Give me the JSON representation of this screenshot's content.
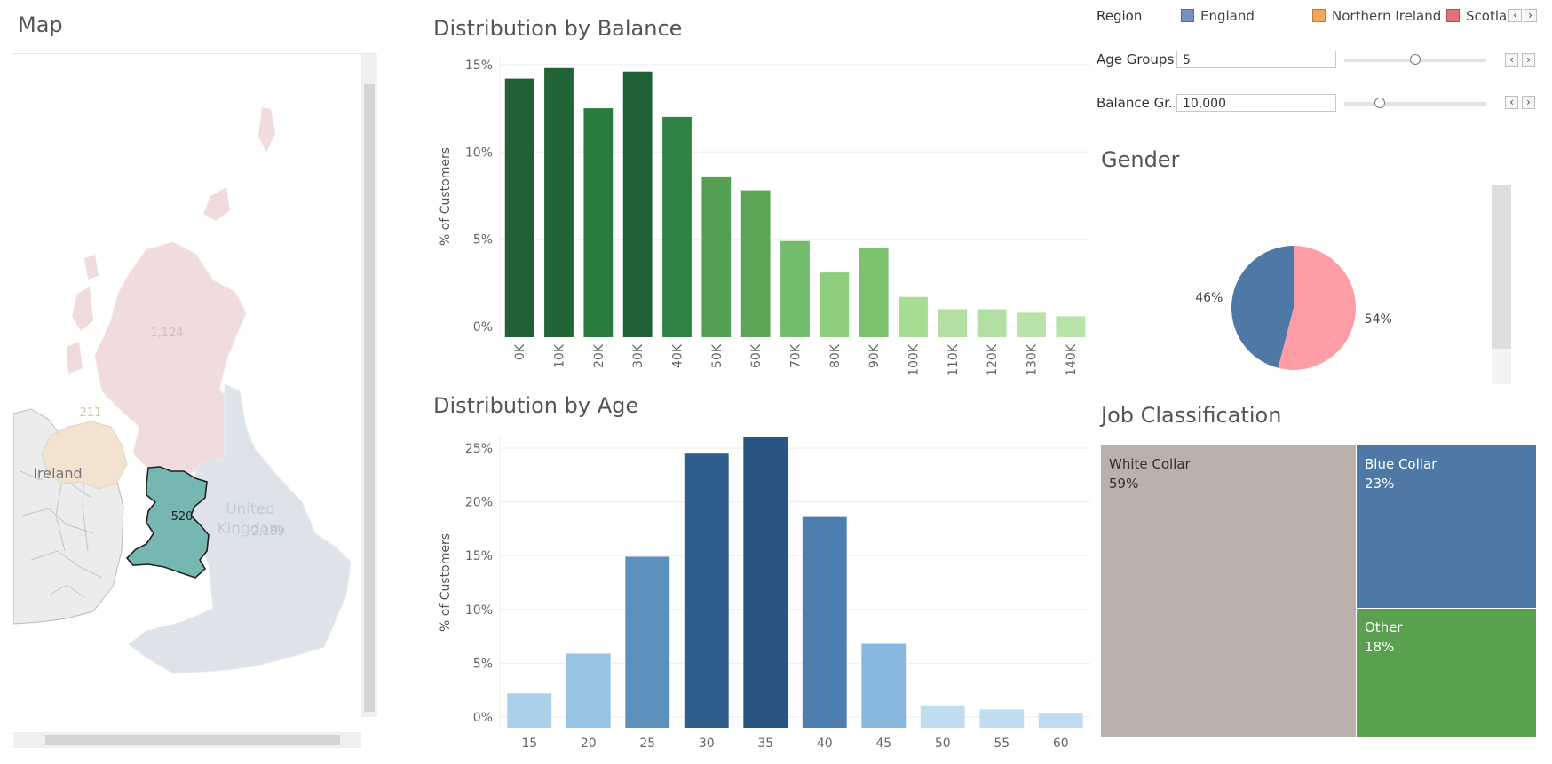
{
  "map": {
    "title": "Map",
    "labels": {
      "scotland": "1,124",
      "northern_ireland": "211",
      "wales": "520",
      "england": "2,189",
      "ireland": "Ireland",
      "united_kingdom_1": "United",
      "united_kingdom_2": "Kingdom"
    },
    "colors": {
      "scotland": "#f0dcdc",
      "northern_ireland": "#f1e3d0",
      "wales": "#76b7b2",
      "england": "#dde3e8",
      "ireland": "#ececec"
    }
  },
  "balance_chart": {
    "title": "Distribution by Balance",
    "chart_data": {
      "type": "bar",
      "title": "Distribution by Balance",
      "xlabel": "",
      "ylabel": "% of Customers",
      "categories": [
        "0K",
        "10K",
        "20K",
        "30K",
        "40K",
        "50K",
        "60K",
        "70K",
        "80K",
        "90K",
        "100K",
        "110K",
        "120K",
        "130K",
        "140K"
      ],
      "values": [
        14.2,
        14.8,
        12.5,
        14.6,
        12.0,
        8.6,
        7.8,
        4.9,
        3.1,
        4.5,
        1.7,
        1.0,
        1.0,
        0.8,
        0.6
      ],
      "ylim": [
        -0.6,
        15.5
      ],
      "yticks": [
        0,
        5,
        10,
        15
      ],
      "ytick_labels": [
        "0%",
        "5%",
        "10%",
        "15%"
      ],
      "grid": true,
      "colors": [
        "#215f37",
        "#226337",
        "#2b7d3e",
        "#216037",
        "#2f8443",
        "#53a052",
        "#5ca456",
        "#72bd6d",
        "#8dce7c",
        "#7cc26c",
        "#a6dc94",
        "#b2e0a2",
        "#b2e0a2",
        "#b8e3a9",
        "#b8e3a9"
      ]
    }
  },
  "age_chart": {
    "title": "Distribution by Age",
    "chart_data": {
      "type": "bar",
      "title": "Distribution by Age",
      "xlabel": "",
      "ylabel": "% of Customers",
      "categories": [
        "15",
        "20",
        "25",
        "30",
        "35",
        "40",
        "45",
        "50",
        "55",
        "60"
      ],
      "values": [
        2.2,
        5.9,
        14.9,
        24.5,
        26.0,
        18.6,
        6.8,
        1.0,
        0.7,
        0.3
      ],
      "ylim": [
        -1.0,
        26.0
      ],
      "yticks": [
        0,
        5,
        10,
        15,
        20,
        25
      ],
      "ytick_labels": [
        "0%",
        "5%",
        "10%",
        "15%",
        "20%",
        "25%"
      ],
      "grid": true,
      "colors": [
        "#abd0ea",
        "#97c4e4",
        "#5d8fbd",
        "#305e8c",
        "#295582",
        "#4e7eb0",
        "#88b7dd",
        "#c0dcf0",
        "#c0dcf0",
        "#c0dcf0"
      ]
    }
  },
  "controls": {
    "region_label": "Region",
    "legend": [
      {
        "label": "England",
        "color": "#7094bb"
      },
      {
        "label": "Northern Ireland",
        "color": "#f4a55a"
      },
      {
        "label": "Scotla",
        "color": "#e1727a"
      }
    ],
    "age_groups": {
      "label": "Age Groups",
      "value": "5",
      "slider_pos": 0.5
    },
    "balance_groups": {
      "label": "Balance Gr...",
      "value": "10,000",
      "slider_pos": 0.25
    },
    "prev_icon": "‹",
    "next_icon": "›"
  },
  "gender": {
    "title": "Gender",
    "chart_data": {
      "type": "pie",
      "title": "Gender",
      "slices": [
        {
          "label": "46%",
          "value": 46,
          "color": "#4e78a6"
        },
        {
          "label": "54%",
          "value": 54,
          "color": "#fe9da6"
        }
      ]
    }
  },
  "job": {
    "title": "Job Classification",
    "cells": [
      {
        "name": "White Collar",
        "pct": "59%",
        "color": "#bab0ac",
        "text_color": "#333333"
      },
      {
        "name": "Blue Collar",
        "pct": "23%",
        "color": "#4e78a6",
        "text_color": "#ffffff"
      },
      {
        "name": "Other",
        "pct": "18%",
        "color": "#59a14f",
        "text_color": "#ffffff"
      }
    ]
  }
}
